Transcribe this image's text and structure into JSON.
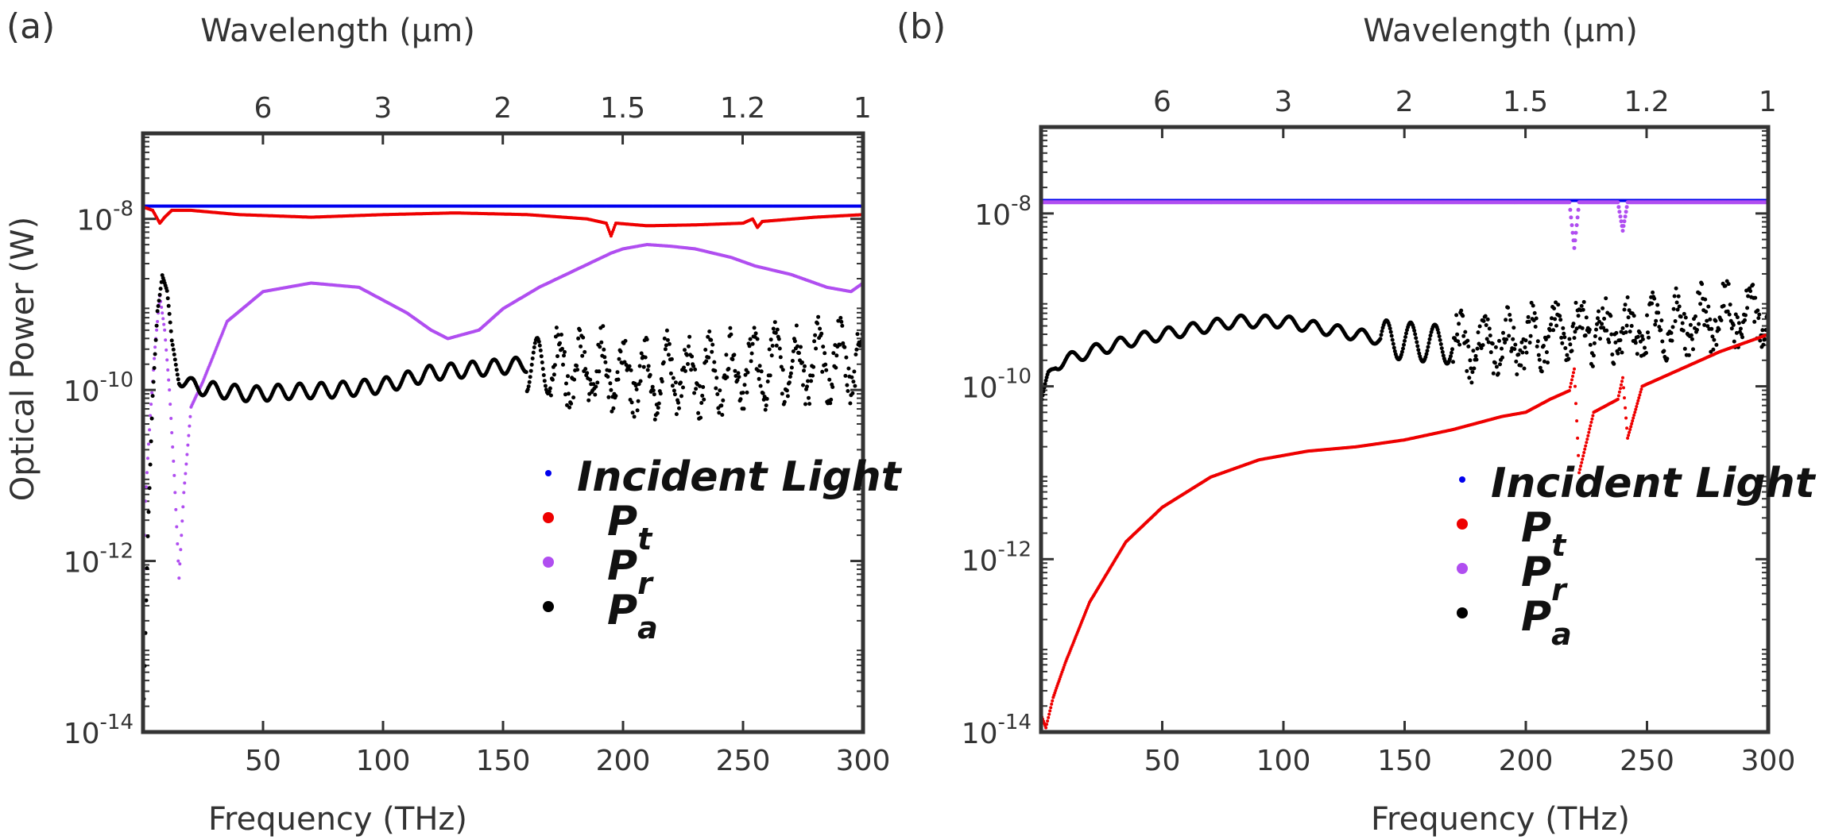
{
  "chart_data": [
    {
      "type": "scatter",
      "panel_label": "(a)",
      "xlabel": "Frequency (THz)",
      "ylabel": "Optical Power (W)",
      "top_xlabel": "Wavelength (μm)",
      "xlim": [
        0,
        300
      ],
      "ylim_log10": [
        -14,
        -7
      ],
      "x_ticks": [
        50,
        100,
        150,
        200,
        250,
        300
      ],
      "y_ticks": [
        {
          "exp": -8,
          "label": "10",
          "sup": "-8"
        },
        {
          "exp": -10,
          "label": "10",
          "sup": "-10"
        },
        {
          "exp": -12,
          "label": "10",
          "sup": "-12"
        },
        {
          "exp": -14,
          "label": "10",
          "sup": "-14"
        }
      ],
      "top_ticks": [
        {
          "label": "6",
          "freq": 49.97
        },
        {
          "label": "3",
          "freq": 99.93
        },
        {
          "label": "2",
          "freq": 149.9
        },
        {
          "label": "1.5",
          "freq": 199.86
        },
        {
          "label": "1.2",
          "freq": 249.83
        },
        {
          "label": "1",
          "freq": 299.79
        }
      ],
      "legend": [
        {
          "name": "Incident Light",
          "base": "Incident Light",
          "sub": "",
          "color": "#0000ee"
        },
        {
          "name": "P_t",
          "base": "P",
          "sub": "t",
          "color": "#ee0000"
        },
        {
          "name": "P_r",
          "base": "P",
          "sub": "r",
          "color": "#b04ef0"
        },
        {
          "name": "P_a",
          "base": "P",
          "sub": "a",
          "color": "#000000"
        }
      ],
      "series": [
        {
          "name": "Incident Light",
          "color": "#0000ee",
          "dot": 4,
          "points": [
            [
              0,
              -7.85
            ],
            [
              300,
              -7.85
            ]
          ]
        },
        {
          "name": "P_t",
          "color": "#ee0000",
          "dot": 4,
          "points": [
            [
              1,
              -7.87
            ],
            [
              4,
              -7.9
            ],
            [
              7,
              -8.05
            ],
            [
              9,
              -7.98
            ],
            [
              12,
              -7.9
            ],
            [
              20,
              -7.9
            ],
            [
              40,
              -7.95
            ],
            [
              70,
              -7.98
            ],
            [
              100,
              -7.95
            ],
            [
              130,
              -7.93
            ],
            [
              160,
              -7.95
            ],
            [
              185,
              -8.0
            ],
            [
              193,
              -8.05
            ],
            [
              195,
              -8.2
            ],
            [
              197,
              -8.05
            ],
            [
              210,
              -8.08
            ],
            [
              230,
              -8.07
            ],
            [
              250,
              -8.05
            ],
            [
              254,
              -8.0
            ],
            [
              256,
              -8.1
            ],
            [
              258,
              -8.03
            ],
            [
              280,
              -7.98
            ],
            [
              300,
              -7.95
            ]
          ]
        },
        {
          "name": "P_r",
          "color": "#b04ef0",
          "dot": 4,
          "points": [
            [
              0,
              -12.5
            ],
            [
              1,
              -11.3
            ],
            [
              3,
              -10.3
            ],
            [
              5,
              -9.5
            ],
            [
              7,
              -8.9
            ],
            [
              9,
              -9.3
            ],
            [
              11,
              -10.0
            ],
            [
              13,
              -11.0
            ],
            [
              15,
              -12.2
            ],
            [
              17,
              -11.2
            ],
            [
              20,
              -10.2
            ],
            [
              25,
              -9.9
            ],
            [
              35,
              -9.2
            ],
            [
              50,
              -8.85
            ],
            [
              70,
              -8.75
            ],
            [
              90,
              -8.8
            ],
            [
              110,
              -9.1
            ],
            [
              120,
              -9.3
            ],
            [
              127,
              -9.4
            ],
            [
              140,
              -9.3
            ],
            [
              150,
              -9.05
            ],
            [
              165,
              -8.8
            ],
            [
              180,
              -8.6
            ],
            [
              195,
              -8.4
            ],
            [
              200,
              -8.35
            ],
            [
              210,
              -8.3
            ],
            [
              220,
              -8.32
            ],
            [
              230,
              -8.35
            ],
            [
              245,
              -8.45
            ],
            [
              255,
              -8.55
            ],
            [
              270,
              -8.65
            ],
            [
              285,
              -8.8
            ],
            [
              295,
              -8.85
            ],
            [
              300,
              -8.75
            ]
          ]
        },
        {
          "name": "P_a",
          "color": "#000000",
          "dot": 5,
          "points": [
            [
              0,
              -14
            ],
            [
              2,
              -11.8
            ],
            [
              4,
              -10.1
            ],
            [
              6,
              -9.0
            ],
            [
              8,
              -8.6
            ],
            [
              10,
              -8.9
            ],
            [
              12,
              -9.5
            ],
            [
              15,
              -9.85
            ],
            [
              20,
              -9.95
            ],
            [
              30,
              -10.0
            ],
            [
              45,
              -10.05
            ],
            [
              60,
              -10.02
            ],
            [
              80,
              -10.0
            ],
            [
              100,
              -9.95
            ],
            [
              120,
              -9.8
            ],
            [
              140,
              -9.75
            ],
            [
              160,
              -9.7
            ],
            [
              180,
              -9.75
            ],
            [
              200,
              -9.8
            ],
            [
              220,
              -9.85
            ],
            [
              240,
              -9.8
            ],
            [
              260,
              -9.72
            ],
            [
              280,
              -9.68
            ],
            [
              300,
              -9.65
            ]
          ]
        }
      ]
    },
    {
      "type": "scatter",
      "panel_label": "(b)",
      "xlabel": "Frequency (THz)",
      "ylabel": "",
      "top_xlabel": "Wavelength (μm)",
      "xlim": [
        0,
        300
      ],
      "ylim_log10": [
        -14,
        -7
      ],
      "x_ticks": [
        50,
        100,
        150,
        200,
        250,
        300
      ],
      "y_ticks": [
        {
          "exp": -8,
          "label": "10",
          "sup": "-8"
        },
        {
          "exp": -10,
          "label": "10",
          "sup": "-10"
        },
        {
          "exp": -12,
          "label": "10",
          "sup": "-12"
        },
        {
          "exp": -14,
          "label": "10",
          "sup": "-14"
        }
      ],
      "top_ticks": [
        {
          "label": "6",
          "freq": 49.97
        },
        {
          "label": "3",
          "freq": 99.93
        },
        {
          "label": "2",
          "freq": 149.9
        },
        {
          "label": "1.5",
          "freq": 199.86
        },
        {
          "label": "1.2",
          "freq": 249.83
        },
        {
          "label": "1",
          "freq": 299.79
        }
      ],
      "legend": [
        {
          "name": "Incident Light",
          "base": "Incident Light",
          "sub": "",
          "color": "#0000ee"
        },
        {
          "name": "P_t",
          "base": "P",
          "sub": "t",
          "color": "#ee0000"
        },
        {
          "name": "P_r",
          "base": "P",
          "sub": "r",
          "color": "#b04ef0"
        },
        {
          "name": "P_a",
          "base": "P",
          "sub": "a",
          "color": "#000000"
        }
      ],
      "series": [
        {
          "name": "Incident Light",
          "color": "#0000ee",
          "dot": 4,
          "points": [
            [
              0,
              -7.85
            ],
            [
              300,
              -7.85
            ]
          ]
        },
        {
          "name": "P_r",
          "color": "#b04ef0",
          "dot": 5,
          "points": [
            [
              0,
              -7.87
            ],
            [
              100,
              -7.87
            ],
            [
              218,
              -7.87
            ],
            [
              220,
              -8.4
            ],
            [
              222,
              -7.87
            ],
            [
              238,
              -7.87
            ],
            [
              240,
              -8.2
            ],
            [
              242,
              -7.87
            ],
            [
              300,
              -7.87
            ]
          ]
        },
        {
          "name": "P_a",
          "color": "#000000",
          "dot": 5,
          "points": [
            [
              0,
              -10.2
            ],
            [
              3,
              -9.9
            ],
            [
              6,
              -9.75
            ],
            [
              10,
              -9.7
            ],
            [
              20,
              -9.6
            ],
            [
              40,
              -9.45
            ],
            [
              60,
              -9.35
            ],
            [
              80,
              -9.25
            ],
            [
              100,
              -9.25
            ],
            [
              120,
              -9.35
            ],
            [
              140,
              -9.45
            ],
            [
              160,
              -9.5
            ],
            [
              180,
              -9.55
            ],
            [
              200,
              -9.5
            ],
            [
              220,
              -9.3
            ],
            [
              240,
              -9.4
            ],
            [
              260,
              -9.3
            ],
            [
              280,
              -9.2
            ],
            [
              300,
              -9.2
            ]
          ]
        },
        {
          "name": "P_t",
          "color": "#ee0000",
          "dot": 4,
          "points": [
            [
              0,
              -13.8
            ],
            [
              2,
              -13.95
            ],
            [
              5,
              -13.6
            ],
            [
              10,
              -13.2
            ],
            [
              20,
              -12.5
            ],
            [
              35,
              -11.8
            ],
            [
              50,
              -11.4
            ],
            [
              70,
              -11.05
            ],
            [
              90,
              -10.85
            ],
            [
              110,
              -10.75
            ],
            [
              130,
              -10.7
            ],
            [
              150,
              -10.62
            ],
            [
              170,
              -10.5
            ],
            [
              190,
              -10.35
            ],
            [
              200,
              -10.3
            ],
            [
              210,
              -10.15
            ],
            [
              218,
              -10.05
            ],
            [
              220,
              -9.8
            ],
            [
              222,
              -11.0
            ],
            [
              228,
              -10.3
            ],
            [
              238,
              -10.15
            ],
            [
              240,
              -9.9
            ],
            [
              242,
              -10.6
            ],
            [
              248,
              -10.0
            ],
            [
              260,
              -9.85
            ],
            [
              280,
              -9.6
            ],
            [
              300,
              -9.4
            ]
          ]
        }
      ]
    }
  ]
}
